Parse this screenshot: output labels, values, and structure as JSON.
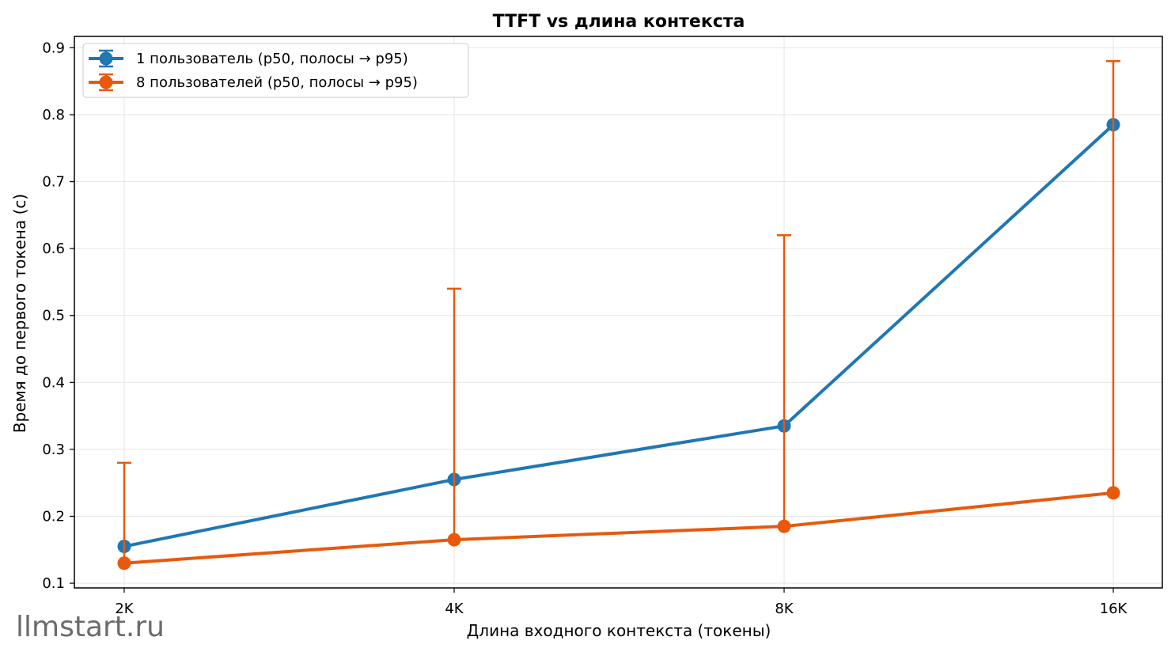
{
  "watermark": "llmstart.ru",
  "chart_data": {
    "type": "line",
    "title": "TTFT vs длина контекста",
    "xlabel": "Длина входного контекста (токены)",
    "ylabel": "Время до первого токена (с)",
    "categories": [
      "2K",
      "4K",
      "8K",
      "16K"
    ],
    "ylim": [
      0.093,
      0.917
    ],
    "yticks": [
      0.1,
      0.2,
      0.3,
      0.4,
      0.5,
      0.6,
      0.7,
      0.8,
      0.9
    ],
    "ytick_labels": [
      "0.1",
      "0.2",
      "0.3",
      "0.4",
      "0.5",
      "0.6",
      "0.7",
      "0.8",
      "0.9"
    ],
    "grid": true,
    "legend_position": "top-left",
    "series": [
      {
        "name": "1 пользователь (p50, полосы → p95)",
        "color": "#1f77b4",
        "values": [
          0.155,
          0.255,
          0.335,
          0.785
        ],
        "p95": [
          0.155,
          0.255,
          0.335,
          0.785
        ]
      },
      {
        "name": "8 пользователей (p50, полосы → p95)",
        "color": "#e8590c",
        "values": [
          0.13,
          0.165,
          0.185,
          0.235
        ],
        "p95": [
          0.28,
          0.54,
          0.62,
          0.88
        ]
      }
    ]
  }
}
